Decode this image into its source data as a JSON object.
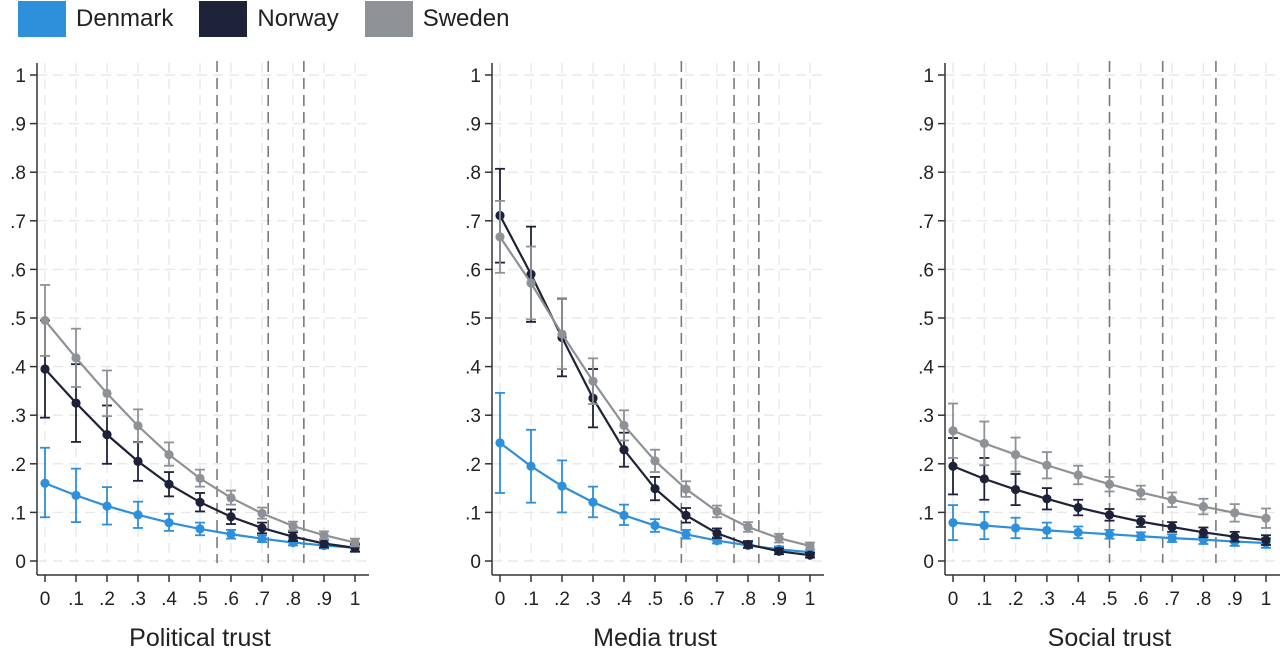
{
  "legend": [
    {
      "label": "Denmark",
      "color": "#2e8fdb"
    },
    {
      "label": "Norway",
      "color": "#1d2238"
    },
    {
      "label": "Sweden",
      "color": "#8e9196"
    }
  ],
  "chart_data": [
    {
      "type": "line",
      "title": "Political trust",
      "xlabel": "Political trust",
      "ylabel": "",
      "xlim": [
        0,
        1
      ],
      "ylim": [
        0,
        1
      ],
      "x": [
        0,
        0.1,
        0.2,
        0.3,
        0.4,
        0.5,
        0.6,
        0.7,
        0.8,
        0.9,
        1
      ],
      "x_tick_labels": [
        "0",
        ".1",
        ".2",
        ".3",
        ".4",
        ".5",
        ".6",
        ".7",
        ".8",
        ".9",
        "1"
      ],
      "y_ticks": [
        0,
        0.1,
        0.2,
        0.3,
        0.4,
        0.5,
        0.6,
        0.7,
        0.8,
        0.9,
        1
      ],
      "y_tick_labels": [
        "0",
        ".1",
        ".2",
        ".3",
        ".4",
        ".5",
        ".6",
        ".7",
        ".8",
        ".9",
        "1"
      ],
      "reference_lines_x": [
        0.555,
        0.72,
        0.835
      ],
      "series": [
        {
          "name": "Denmark",
          "values": [
            0.16,
            0.135,
            0.113,
            0.095,
            0.079,
            0.066,
            0.055,
            0.046,
            0.038,
            0.032,
            0.027
          ],
          "lower": [
            0.09,
            0.08,
            0.075,
            0.068,
            0.062,
            0.053,
            0.046,
            0.039,
            0.032,
            0.026,
            0.02
          ],
          "upper": [
            0.233,
            0.19,
            0.152,
            0.122,
            0.097,
            0.079,
            0.064,
            0.053,
            0.044,
            0.038,
            0.034
          ]
        },
        {
          "name": "Norway",
          "values": [
            0.395,
            0.325,
            0.26,
            0.205,
            0.158,
            0.121,
            0.091,
            0.068,
            0.05,
            0.036,
            0.027
          ],
          "lower": [
            0.295,
            0.245,
            0.2,
            0.165,
            0.133,
            0.102,
            0.076,
            0.057,
            0.041,
            0.028,
            0.019
          ],
          "upper": [
            0.495,
            0.405,
            0.32,
            0.245,
            0.183,
            0.14,
            0.106,
            0.079,
            0.059,
            0.044,
            0.035
          ]
        },
        {
          "name": "Sweden",
          "values": [
            0.495,
            0.418,
            0.345,
            0.278,
            0.219,
            0.17,
            0.13,
            0.098,
            0.072,
            0.053,
            0.038
          ],
          "lower": [
            0.422,
            0.358,
            0.298,
            0.244,
            0.196,
            0.153,
            0.116,
            0.087,
            0.063,
            0.045,
            0.03
          ],
          "upper": [
            0.568,
            0.478,
            0.392,
            0.312,
            0.244,
            0.188,
            0.145,
            0.11,
            0.081,
            0.061,
            0.046
          ]
        }
      ]
    },
    {
      "type": "line",
      "title": "Media trust",
      "xlabel": "Media trust",
      "ylabel": "",
      "xlim": [
        0,
        1
      ],
      "ylim": [
        0,
        1
      ],
      "x": [
        0,
        0.1,
        0.2,
        0.3,
        0.4,
        0.5,
        0.6,
        0.7,
        0.8,
        0.9,
        1
      ],
      "x_tick_labels": [
        "0",
        ".1",
        ".2",
        ".3",
        ".4",
        ".5",
        ".6",
        ".7",
        ".8",
        ".9",
        "1"
      ],
      "y_ticks": [
        0,
        0.1,
        0.2,
        0.3,
        0.4,
        0.5,
        0.6,
        0.7,
        0.8,
        0.9,
        1
      ],
      "y_tick_labels": [
        "0",
        ".1",
        ".2",
        ".3",
        ".4",
        ".5",
        ".6",
        ".7",
        ".8",
        ".9",
        "1"
      ],
      "reference_lines_x": [
        0.585,
        0.755,
        0.835
      ],
      "series": [
        {
          "name": "Denmark",
          "values": [
            0.243,
            0.195,
            0.154,
            0.121,
            0.094,
            0.073,
            0.055,
            0.042,
            0.032,
            0.024,
            0.018
          ],
          "lower": [
            0.14,
            0.12,
            0.1,
            0.09,
            0.074,
            0.06,
            0.046,
            0.036,
            0.027,
            0.019,
            0.013
          ],
          "upper": [
            0.346,
            0.27,
            0.207,
            0.153,
            0.116,
            0.086,
            0.064,
            0.049,
            0.038,
            0.03,
            0.024
          ]
        },
        {
          "name": "Norway",
          "values": [
            0.711,
            0.59,
            0.46,
            0.335,
            0.229,
            0.149,
            0.094,
            0.057,
            0.034,
            0.02,
            0.012
          ],
          "lower": [
            0.614,
            0.492,
            0.38,
            0.275,
            0.194,
            0.125,
            0.079,
            0.047,
            0.027,
            0.014,
            0.007
          ],
          "upper": [
            0.807,
            0.688,
            0.54,
            0.395,
            0.264,
            0.173,
            0.109,
            0.067,
            0.041,
            0.026,
            0.017
          ]
        },
        {
          "name": "Sweden",
          "values": [
            0.667,
            0.572,
            0.467,
            0.37,
            0.279,
            0.206,
            0.148,
            0.102,
            0.07,
            0.047,
            0.031
          ],
          "lower": [
            0.593,
            0.497,
            0.395,
            0.323,
            0.248,
            0.183,
            0.132,
            0.09,
            0.06,
            0.038,
            0.024
          ],
          "upper": [
            0.741,
            0.647,
            0.539,
            0.417,
            0.31,
            0.229,
            0.164,
            0.114,
            0.08,
            0.056,
            0.038
          ]
        }
      ]
    },
    {
      "type": "line",
      "title": "Social trust",
      "xlabel": "Social trust",
      "ylabel": "",
      "xlim": [
        0,
        1
      ],
      "ylim": [
        0,
        1
      ],
      "x": [
        0,
        0.1,
        0.2,
        0.3,
        0.4,
        0.5,
        0.6,
        0.7,
        0.8,
        0.9,
        1
      ],
      "x_tick_labels": [
        "0",
        ".1",
        ".2",
        ".3",
        ".4",
        ".5",
        ".6",
        ".7",
        ".8",
        ".9",
        "1"
      ],
      "y_ticks": [
        0,
        0.1,
        0.2,
        0.3,
        0.4,
        0.5,
        0.6,
        0.7,
        0.8,
        0.9,
        1
      ],
      "y_tick_labels": [
        "0",
        ".1",
        ".2",
        ".3",
        ".4",
        ".5",
        ".6",
        ".7",
        ".8",
        ".9",
        "1"
      ],
      "reference_lines_x": [
        0.5,
        0.67,
        0.84
      ],
      "series": [
        {
          "name": "Denmark",
          "values": [
            0.079,
            0.073,
            0.068,
            0.063,
            0.059,
            0.055,
            0.051,
            0.047,
            0.044,
            0.04,
            0.037
          ],
          "lower": [
            0.043,
            0.045,
            0.047,
            0.047,
            0.047,
            0.046,
            0.043,
            0.039,
            0.035,
            0.031,
            0.027
          ],
          "upper": [
            0.115,
            0.101,
            0.089,
            0.079,
            0.071,
            0.064,
            0.059,
            0.055,
            0.053,
            0.049,
            0.047
          ]
        },
        {
          "name": "Norway",
          "values": [
            0.195,
            0.169,
            0.147,
            0.128,
            0.11,
            0.095,
            0.081,
            0.07,
            0.059,
            0.05,
            0.043
          ],
          "lower": [
            0.137,
            0.126,
            0.115,
            0.106,
            0.094,
            0.083,
            0.07,
            0.06,
            0.049,
            0.04,
            0.033
          ],
          "upper": [
            0.253,
            0.212,
            0.179,
            0.15,
            0.126,
            0.107,
            0.092,
            0.08,
            0.069,
            0.06,
            0.053
          ]
        },
        {
          "name": "Sweden",
          "values": [
            0.268,
            0.242,
            0.219,
            0.197,
            0.177,
            0.158,
            0.141,
            0.126,
            0.112,
            0.099,
            0.088
          ],
          "lower": [
            0.212,
            0.197,
            0.184,
            0.17,
            0.158,
            0.143,
            0.127,
            0.111,
            0.096,
            0.081,
            0.068
          ],
          "upper": [
            0.324,
            0.287,
            0.254,
            0.224,
            0.196,
            0.173,
            0.155,
            0.141,
            0.128,
            0.117,
            0.108
          ]
        }
      ]
    }
  ]
}
